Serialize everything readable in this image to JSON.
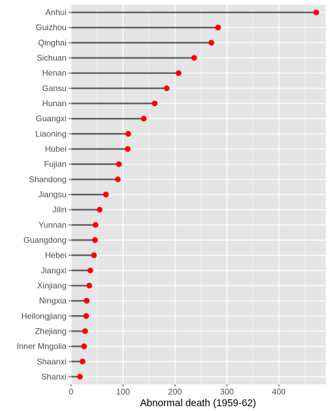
{
  "chart_data": {
    "type": "lollipop",
    "title": "",
    "xlabel": "Abnormal death (1959-62)",
    "ylabel": "",
    "xlim": [
      -1,
      490
    ],
    "x_ticks": [
      0,
      100,
      200,
      300,
      400
    ],
    "grid": true,
    "legend": "none",
    "colors": {
      "panel": "#e5e5e5",
      "grid_major": "#ffffff",
      "stem": "#666666",
      "point": "#ff0000",
      "tick_text": "#4d4d4d"
    },
    "categories": [
      "Anhui",
      "Guizhou",
      "Qinghai",
      "Sichuan",
      "Henan",
      "Gansu",
      "Hunan",
      "Guangxi",
      "Liaoning",
      "Hubei",
      "Fujian",
      "Shandong",
      "Jiangsu",
      "Jilin",
      "Yunnan",
      "Guangdong",
      "Hebei",
      "Jiangxi",
      "Xinjiang",
      "Ningxia",
      "Heilongjiang",
      "Zhejiang",
      "Inner Mngolia",
      "Shaanxi",
      "Shanxi"
    ],
    "values": [
      472,
      283,
      270,
      237,
      207,
      184,
      161,
      140,
      110,
      109,
      92,
      90,
      67,
      55,
      47,
      46,
      44,
      37,
      35,
      30,
      29,
      27,
      25,
      22,
      17
    ]
  }
}
